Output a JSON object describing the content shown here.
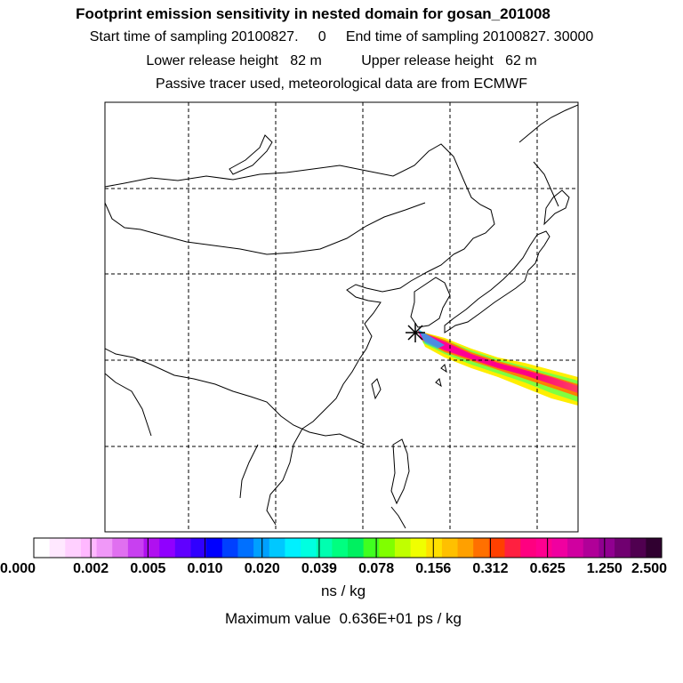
{
  "header": {
    "title": "Footprint emission sensitivity in nested domain for gosan_201008",
    "sampling_line": "Start time of sampling 20100827.     0     End time of sampling 20100827. 30000",
    "release_line": "Lower release height   82 m          Upper release height   62 m",
    "tracer_line": "Passive tracer used, meteorological data are from ECMWF"
  },
  "colorbar": {
    "tick_labels": [
      "0.000",
      "0.002",
      "0.005",
      "0.010",
      "0.020",
      "0.039",
      "0.078",
      "0.156",
      "0.312",
      "0.625",
      "1.250",
      "2.500"
    ],
    "unit": "ns / kg",
    "colors": [
      "#ffffff",
      "#ffe8ff",
      "#ffd0ff",
      "#ffb8ff",
      "#f098f8",
      "#e070f0",
      "#c840f0",
      "#b010f0",
      "#9000ff",
      "#6000ff",
      "#3000ff",
      "#0000ff",
      "#0040ff",
      "#0070ff",
      "#00a0ff",
      "#00c8ff",
      "#00f0ff",
      "#00ffe0",
      "#00ffb0",
      "#00ff80",
      "#00f060",
      "#40ff20",
      "#80ff00",
      "#c0ff00",
      "#f0ff00",
      "#ffe000",
      "#ffc000",
      "#ffa000",
      "#ff7000",
      "#ff4000",
      "#ff2040",
      "#ff0080",
      "#ff0090",
      "#f000a0",
      "#d000a0",
      "#b00098",
      "#900090",
      "#700070",
      "#500050",
      "#300030"
    ]
  },
  "footer": {
    "max_value": "Maximum value  0.636E+01 ps / kg"
  },
  "map": {
    "receptor": "gosan",
    "coastline_color": "#000000",
    "grid_style": "dashed"
  }
}
